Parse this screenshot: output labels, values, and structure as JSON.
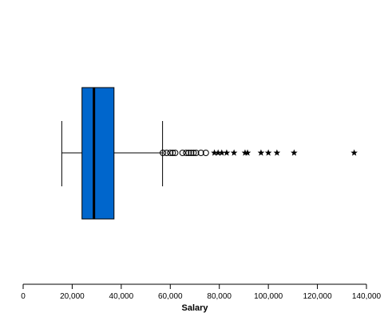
{
  "chart_data": {
    "type": "boxplot",
    "orientation": "horizontal",
    "xlabel": "Salary",
    "xlim": [
      0,
      140000
    ],
    "ticks": [
      0,
      20000,
      40000,
      60000,
      80000,
      100000,
      120000,
      140000
    ],
    "tick_labels": [
      "0",
      "20,000",
      "40,000",
      "60,000",
      "80,000",
      "100,000",
      "120,000",
      "140,000"
    ],
    "box": {
      "whisker_low": 15750,
      "q1": 24000,
      "median": 28875,
      "q3": 37050,
      "whisker_high": 56850
    },
    "outliers": [
      57000,
      58500,
      60000,
      61000,
      62000,
      65000,
      66500,
      67500,
      68500,
      69500,
      70500,
      72500,
      74500
    ],
    "extremes": [
      78000,
      79500,
      81000,
      83000,
      86000,
      90500,
      91500,
      97000,
      100000,
      103500,
      110500,
      135000
    ],
    "box_color": "#0066cc",
    "grid": false
  }
}
